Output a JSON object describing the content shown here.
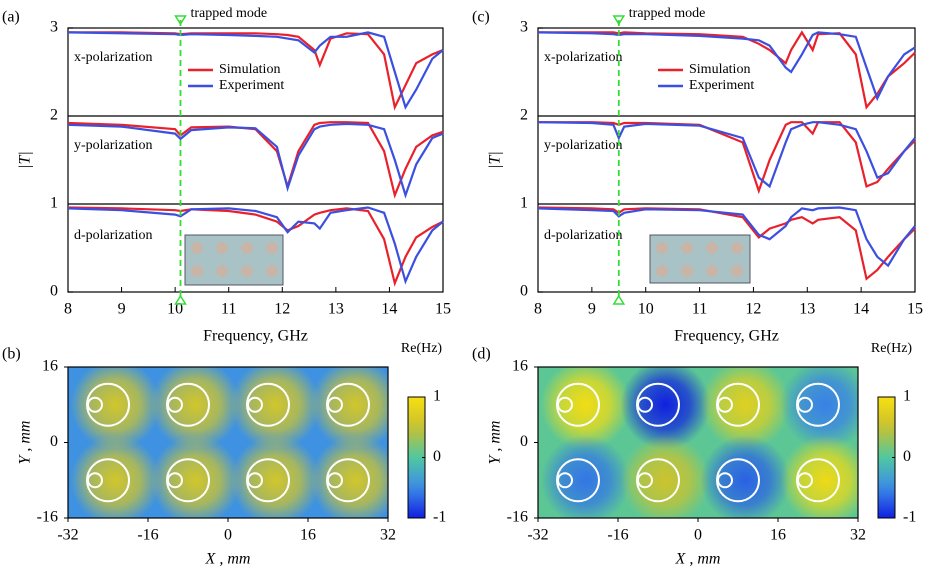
{
  "chart_data": [
    {
      "type": "line",
      "panel": "(a)",
      "xlabel": "Frequency, GHz",
      "ylabel": "|T|",
      "xlim": [
        8,
        15
      ],
      "xticks": [
        8,
        9,
        10,
        11,
        12,
        13,
        14,
        15
      ],
      "ylim": [
        0,
        3
      ],
      "yticks": [
        0,
        1,
        2,
        3
      ],
      "annotations": [
        "x-polarization",
        "y-polarization",
        "d-polarization"
      ],
      "marker_label": "trapped mode",
      "marker_x": 10.1,
      "marker_color": "#33dd33",
      "x": [
        8,
        9,
        10,
        10.1,
        10.3,
        11,
        11.5,
        11.9,
        12.1,
        12.3,
        12.6,
        12.7,
        12.9,
        13.2,
        13.6,
        13.9,
        14.1,
        14.3,
        14.5,
        14.8,
        15
      ],
      "series": [
        {
          "name": "Simulation",
          "color": "#e8212b",
          "values": [
            2.95,
            2.95,
            2.94,
            2.93,
            2.94,
            2.94,
            2.94,
            2.93,
            2.92,
            2.9,
            2.75,
            2.58,
            2.88,
            2.94,
            2.93,
            2.7,
            2.1,
            2.35,
            2.6,
            2.7,
            2.75
          ]
        },
        {
          "name": "Experiment",
          "color": "#3b4fe0",
          "values": [
            2.95,
            2.94,
            2.93,
            2.92,
            2.93,
            2.92,
            2.91,
            2.9,
            2.88,
            2.86,
            2.72,
            2.8,
            2.9,
            2.9,
            2.95,
            2.9,
            2.5,
            2.1,
            2.3,
            2.65,
            2.75
          ]
        },
        {
          "name": "Simulation",
          "color": "#e8212b",
          "values": [
            1.92,
            1.9,
            1.85,
            1.78,
            1.87,
            1.88,
            1.85,
            1.6,
            1.2,
            1.6,
            1.9,
            1.92,
            1.93,
            1.93,
            1.92,
            1.6,
            1.1,
            1.4,
            1.65,
            1.78,
            1.82
          ]
        },
        {
          "name": "Experiment",
          "color": "#3b4fe0",
          "values": [
            1.9,
            1.88,
            1.8,
            1.74,
            1.84,
            1.87,
            1.86,
            1.65,
            1.18,
            1.55,
            1.85,
            1.88,
            1.9,
            1.91,
            1.9,
            1.85,
            1.5,
            1.1,
            1.45,
            1.75,
            1.8
          ]
        },
        {
          "name": "Simulation",
          "color": "#e8212b",
          "values": [
            0.96,
            0.95,
            0.93,
            0.92,
            0.94,
            0.92,
            0.88,
            0.8,
            0.7,
            0.75,
            0.88,
            0.9,
            0.93,
            0.95,
            0.92,
            0.6,
            0.1,
            0.4,
            0.62,
            0.74,
            0.8
          ]
        },
        {
          "name": "Experiment",
          "color": "#3b4fe0",
          "values": [
            0.95,
            0.93,
            0.88,
            0.86,
            0.94,
            0.95,
            0.92,
            0.85,
            0.68,
            0.8,
            0.78,
            0.72,
            0.9,
            0.93,
            0.96,
            0.9,
            0.55,
            0.12,
            0.4,
            0.7,
            0.8
          ]
        }
      ]
    },
    {
      "type": "heatmap",
      "panel": "(b)",
      "xlabel": "X , mm",
      "ylabel": "Y , mm",
      "zlabel": "Re(Hz)",
      "xlim": [
        -32,
        32
      ],
      "xticks": [
        -32,
        -16,
        0,
        16,
        32
      ],
      "ylim": [
        -16,
        16
      ],
      "yticks": [
        -16,
        0,
        16
      ],
      "zlim": [
        -1,
        1
      ],
      "zticks": [
        -1,
        0,
        1
      ],
      "background": -0.45,
      "x": [
        -24,
        -8,
        8,
        24,
        -24,
        -8,
        8,
        24
      ],
      "y": [
        8,
        8,
        8,
        8,
        -8,
        -8,
        -8,
        -8
      ],
      "values": [
        0.6,
        0.6,
        0.6,
        0.6,
        0.6,
        0.6,
        0.6,
        0.6
      ]
    },
    {
      "type": "line",
      "panel": "(c)",
      "xlabel": "Frequency, GHz",
      "ylabel": "|T|",
      "xlim": [
        8,
        15
      ],
      "xticks": [
        8,
        9,
        10,
        11,
        12,
        13,
        14,
        15
      ],
      "ylim": [
        0,
        3
      ],
      "yticks": [
        0,
        1,
        2,
        3
      ],
      "annotations": [
        "x-polarization",
        "y-polarization",
        "d-polarization"
      ],
      "marker_label": "trapped mode",
      "marker_x": 9.5,
      "marker_color": "#33dd33",
      "x": [
        8,
        9,
        9.4,
        9.5,
        9.6,
        10,
        11,
        11.8,
        12.1,
        12.3,
        12.6,
        12.7,
        12.9,
        13.1,
        13.2,
        13.6,
        13.9,
        14.1,
        14.3,
        14.5,
        14.8,
        15
      ],
      "series": [
        {
          "name": "Simulation",
          "color": "#e8212b",
          "values": [
            2.95,
            2.95,
            2.95,
            2.94,
            2.95,
            2.94,
            2.93,
            2.9,
            2.82,
            2.75,
            2.6,
            2.75,
            2.95,
            2.75,
            2.93,
            2.94,
            2.7,
            2.1,
            2.25,
            2.45,
            2.6,
            2.72
          ]
        },
        {
          "name": "Experiment",
          "color": "#3b4fe0",
          "values": [
            2.95,
            2.94,
            2.93,
            2.92,
            2.93,
            2.93,
            2.91,
            2.88,
            2.86,
            2.8,
            2.55,
            2.5,
            2.7,
            2.92,
            2.95,
            2.93,
            2.9,
            2.55,
            2.2,
            2.45,
            2.7,
            2.78
          ]
        },
        {
          "name": "Simulation",
          "color": "#e8212b",
          "values": [
            1.93,
            1.93,
            1.92,
            1.9,
            1.92,
            1.92,
            1.9,
            1.7,
            1.15,
            1.5,
            1.9,
            1.93,
            1.93,
            1.8,
            1.93,
            1.93,
            1.7,
            1.2,
            1.25,
            1.4,
            1.6,
            1.72
          ]
        },
        {
          "name": "Experiment",
          "color": "#3b4fe0",
          "values": [
            1.93,
            1.92,
            1.9,
            1.75,
            1.88,
            1.91,
            1.89,
            1.75,
            1.3,
            1.2,
            1.7,
            1.85,
            1.9,
            1.93,
            1.93,
            1.9,
            1.85,
            1.6,
            1.3,
            1.35,
            1.6,
            1.75
          ]
        },
        {
          "name": "Simulation",
          "color": "#e8212b",
          "values": [
            0.96,
            0.95,
            0.94,
            0.9,
            0.94,
            0.95,
            0.94,
            0.85,
            0.62,
            0.72,
            0.78,
            0.82,
            0.85,
            0.78,
            0.82,
            0.85,
            0.7,
            0.15,
            0.25,
            0.4,
            0.6,
            0.72
          ]
        },
        {
          "name": "Experiment",
          "color": "#3b4fe0",
          "values": [
            0.95,
            0.93,
            0.92,
            0.86,
            0.9,
            0.94,
            0.93,
            0.88,
            0.65,
            0.6,
            0.75,
            0.85,
            0.95,
            0.93,
            0.95,
            0.96,
            0.93,
            0.6,
            0.4,
            0.3,
            0.6,
            0.75
          ]
        }
      ]
    },
    {
      "type": "heatmap",
      "panel": "(d)",
      "xlabel": "X , mm",
      "ylabel": "Y , mm",
      "zlabel": "Re(Hz)",
      "xlim": [
        -32,
        32
      ],
      "xticks": [
        -32,
        -16,
        0,
        16,
        32
      ],
      "ylim": [
        -16,
        16
      ],
      "yticks": [
        -16,
        0,
        16
      ],
      "zlim": [
        -1,
        1
      ],
      "zticks": [
        -1,
        0,
        1
      ],
      "background": 0.05,
      "x": [
        -24,
        -8,
        8,
        24,
        -24,
        -8,
        8,
        24
      ],
      "y": [
        8,
        8,
        8,
        8,
        -8,
        -8,
        -8,
        -8
      ],
      "values": [
        0.95,
        -1,
        0.75,
        -0.55,
        -0.6,
        0.55,
        -0.7,
        0.9
      ]
    }
  ]
}
